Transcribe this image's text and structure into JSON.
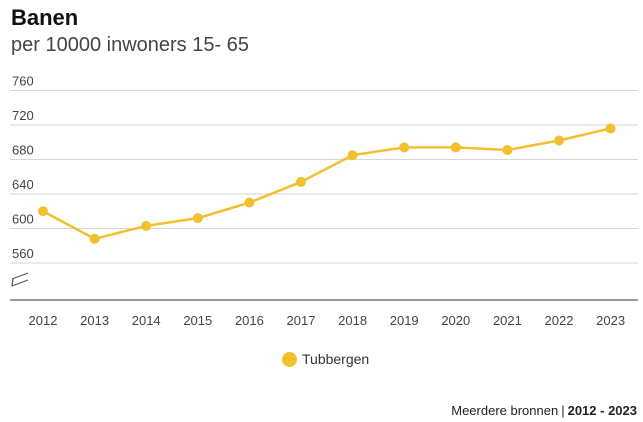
{
  "title": "Banen",
  "subtitle": "per 10000 inwoners 15- 65",
  "legend": {
    "label": "Tubbergen"
  },
  "source": {
    "text": "Meerdere bronnen",
    "separator": "|",
    "years": "2012 - 2023"
  },
  "chart_data": {
    "type": "line",
    "categories": [
      "2012",
      "2013",
      "2014",
      "2015",
      "2016",
      "2017",
      "2018",
      "2019",
      "2020",
      "2021",
      "2022",
      "2023"
    ],
    "series": [
      {
        "name": "Tubbergen",
        "color": "#f0c02f",
        "values": [
          620,
          588,
          603,
          612,
          630,
          654,
          685,
          694,
          694,
          691,
          702,
          716
        ]
      }
    ],
    "yticks": [
      560,
      600,
      640,
      680,
      720,
      760
    ],
    "ylim": [
      520,
      760
    ],
    "axis_break": true,
    "grid": true,
    "legend_position": "bottom-center"
  }
}
